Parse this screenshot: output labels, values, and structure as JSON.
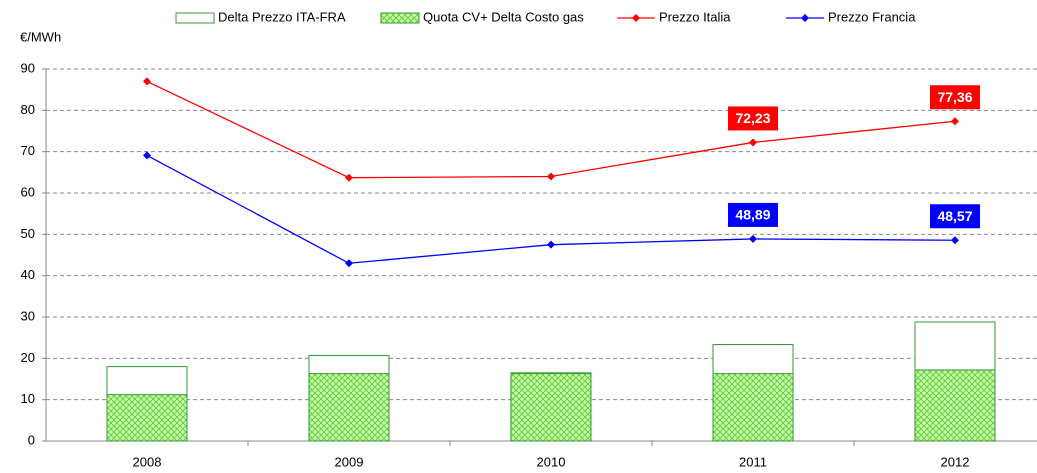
{
  "chart_data": {
    "type": "combo",
    "unit_label": "€/MWh",
    "categories": [
      "2008",
      "2009",
      "2010",
      "2011",
      "2012"
    ],
    "series": [
      {
        "name": "Delta Prezzo ITA-FRA",
        "type": "bar",
        "color": "#339933",
        "values": [
          18,
          20.7,
          16.5,
          23.34,
          28.79
        ]
      },
      {
        "name": "Quota CV+ Delta Costo gas",
        "type": "bar",
        "color": "#339933",
        "values": [
          11.2,
          16.3,
          16.3,
          16.3,
          17.2
        ]
      },
      {
        "name": "Prezzo Italia",
        "type": "line",
        "color": "#ff0000",
        "values": [
          87,
          63.7,
          64,
          72.23,
          77.36
        ],
        "value_labels": [
          null,
          null,
          null,
          "72,23",
          "77,36"
        ]
      },
      {
        "name": "Prezzo Francia",
        "type": "line",
        "color": "#0000ff",
        "values": [
          69.1,
          43,
          47.5,
          48.89,
          48.57
        ],
        "value_labels": [
          null,
          null,
          null,
          "48,89",
          "48,57"
        ]
      }
    ],
    "ylim": [
      0,
      90
    ],
    "yticks": [
      0,
      10,
      20,
      30,
      40,
      50,
      60,
      70,
      80,
      90
    ],
    "grid": true
  }
}
